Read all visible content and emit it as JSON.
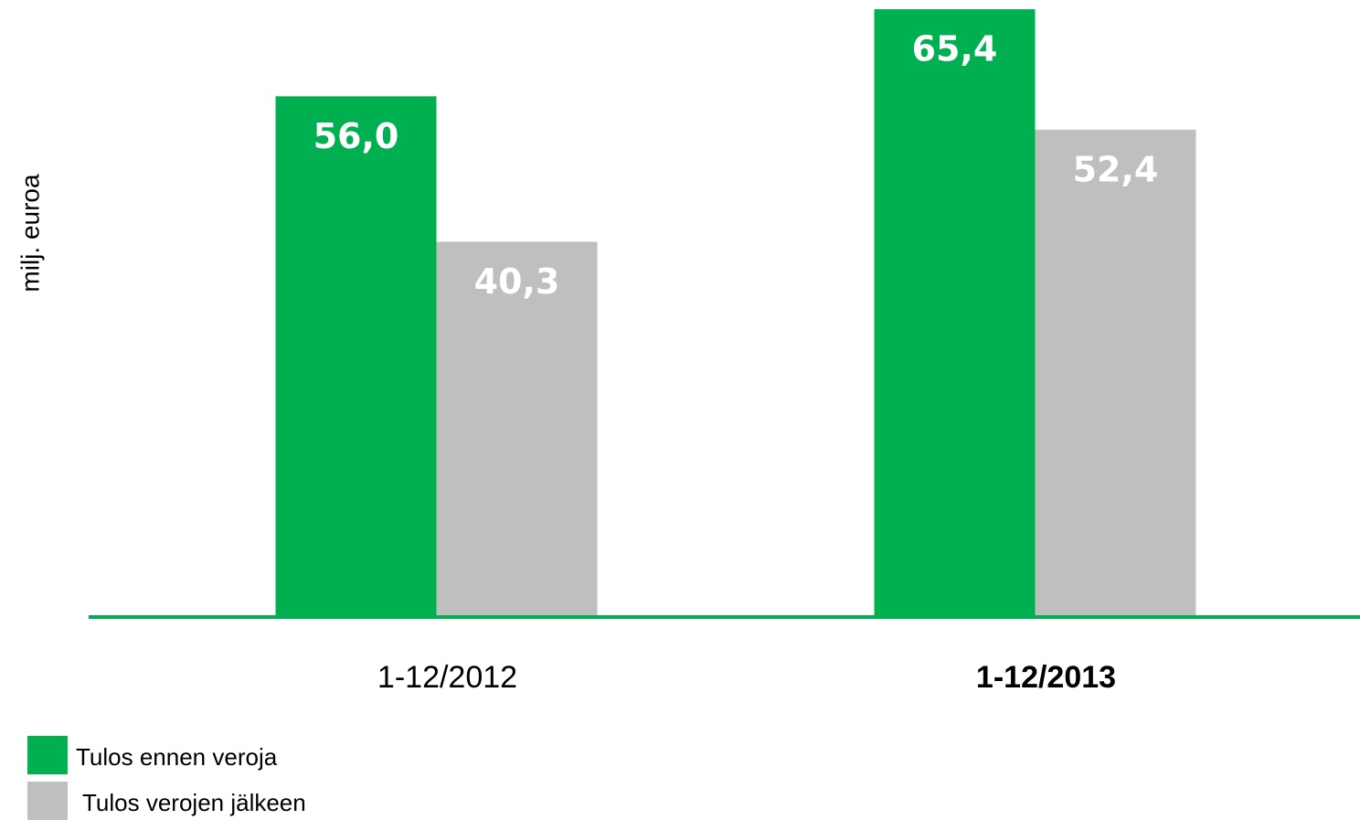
{
  "chart_data": {
    "type": "bar",
    "y_label": "milj. euroa",
    "categories": [
      "1-12/2012",
      "1-12/2013"
    ],
    "series": [
      {
        "name": "Tulos ennen veroja",
        "color": "#00b050",
        "values": [
          56.0,
          65.4
        ],
        "value_labels": [
          "56,0",
          "65,4"
        ]
      },
      {
        "name": "Tulos verojen jälkeen",
        "color": "#bfbfbf",
        "values": [
          40.3,
          52.4
        ],
        "value_labels": [
          "40,3",
          "52,4"
        ]
      }
    ],
    "ylim": [
      0,
      66
    ],
    "axis_color": "#00b050",
    "legend": "bottom-left"
  }
}
